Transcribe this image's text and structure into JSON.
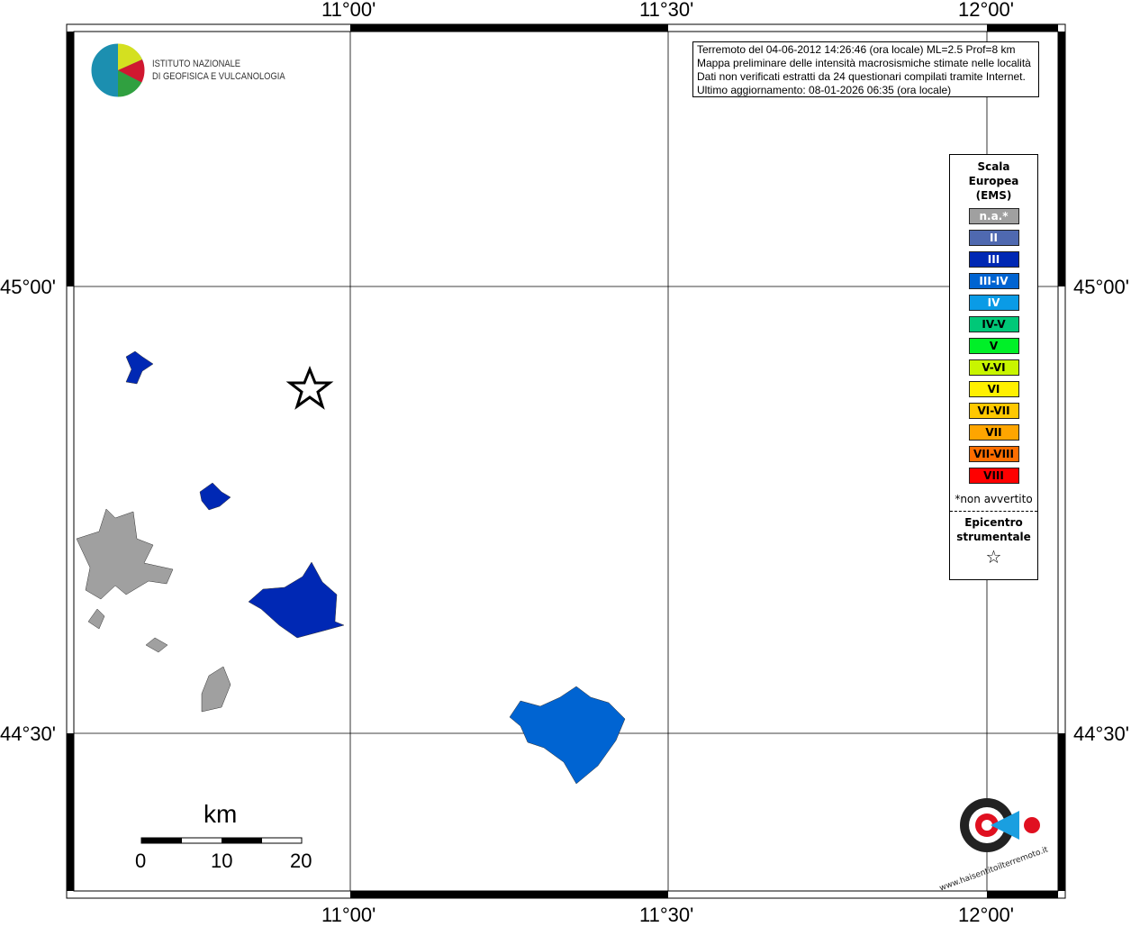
{
  "map": {
    "lon_labels": [
      "11°00'",
      "11°30'",
      "12°00'"
    ],
    "lat_labels": [
      "45°00'",
      "44°30'"
    ],
    "info": [
      "Terremoto del 04-06-2012 14:26:46 (ora locale) ML=2.5 Prof=8 km",
      "Mappa preliminare delle intensità macrosismiche stimate nelle località",
      "Dati non verificati estratti da 24 questionari compilati tramite Internet.",
      "Ultimo aggiornamento: 08-01-2026 06:35 (ora locale)"
    ],
    "logo": {
      "line1": "ISTITUTO NAZIONALE",
      "line2": "DI GEOFISICA E VULCANOLOGIA"
    },
    "logo2": "www.haisentitoilterremoto.it",
    "scale": {
      "unit": "km",
      "labels": [
        "0",
        "10",
        "20"
      ]
    },
    "legend": {
      "title": [
        "Scala",
        "Europea",
        "(EMS)"
      ],
      "items": [
        {
          "label": "n.a.*",
          "color": "#a0a0a0",
          "text": "#fff"
        },
        {
          "label": "II",
          "color": "#4f69b0",
          "text": "#fff"
        },
        {
          "label": "III",
          "color": "#0028b4",
          "text": "#fff"
        },
        {
          "label": "III-IV",
          "color": "#0064d2",
          "text": "#fff"
        },
        {
          "label": "IV",
          "color": "#0a9be6",
          "text": "#fff"
        },
        {
          "label": "IV-V",
          "color": "#00c878",
          "text": "#000"
        },
        {
          "label": "V",
          "color": "#00f028",
          "text": "#000"
        },
        {
          "label": "V-VI",
          "color": "#c8f500",
          "text": "#000"
        },
        {
          "label": "VI",
          "color": "#fff000",
          "text": "#000"
        },
        {
          "label": "VI-VII",
          "color": "#ffc800",
          "text": "#000"
        },
        {
          "label": "VII",
          "color": "#ffa500",
          "text": "#000"
        },
        {
          "label": "VII-VIII",
          "color": "#ff6e00",
          "text": "#000"
        },
        {
          "label": "VIII",
          "color": "#ff0000",
          "text": "#000"
        }
      ],
      "note": "*non avvertito",
      "epicenter": [
        "Epicentro",
        "strumentale"
      ]
    }
  }
}
